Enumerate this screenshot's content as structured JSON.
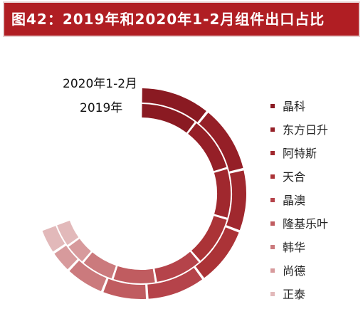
{
  "title": "图42：2019年和2020年1-2月组件出口占比",
  "chart_data": {
    "type": "donut",
    "title": "图42：2019年和2020年1-2月组件出口占比",
    "rings": [
      {
        "name": "2020年1-2月",
        "position": "outer",
        "values": [
          12.5,
          12.0,
          11.0,
          10.5,
          10.5,
          8.0,
          7.0,
          4.0,
          4.5
        ]
      },
      {
        "name": "2019年",
        "position": "inner",
        "values": [
          12.0,
          11.5,
          10.5,
          10.5,
          10.0,
          9.0,
          7.0,
          4.5,
          5.0
        ]
      }
    ],
    "categories": [
      "晶科",
      "东方日升",
      "阿特斯",
      "天合",
      "晶澳",
      "隆基乐叶",
      "韩华",
      "尚德",
      "正泰"
    ],
    "colors": [
      "#8a1a22",
      "#951f27",
      "#a0282e",
      "#ab3337",
      "#b5434a",
      "#c05c60",
      "#cb7a7d",
      "#d79a9c",
      "#e2b9ba"
    ],
    "legend_position": "right",
    "grid": false
  }
}
